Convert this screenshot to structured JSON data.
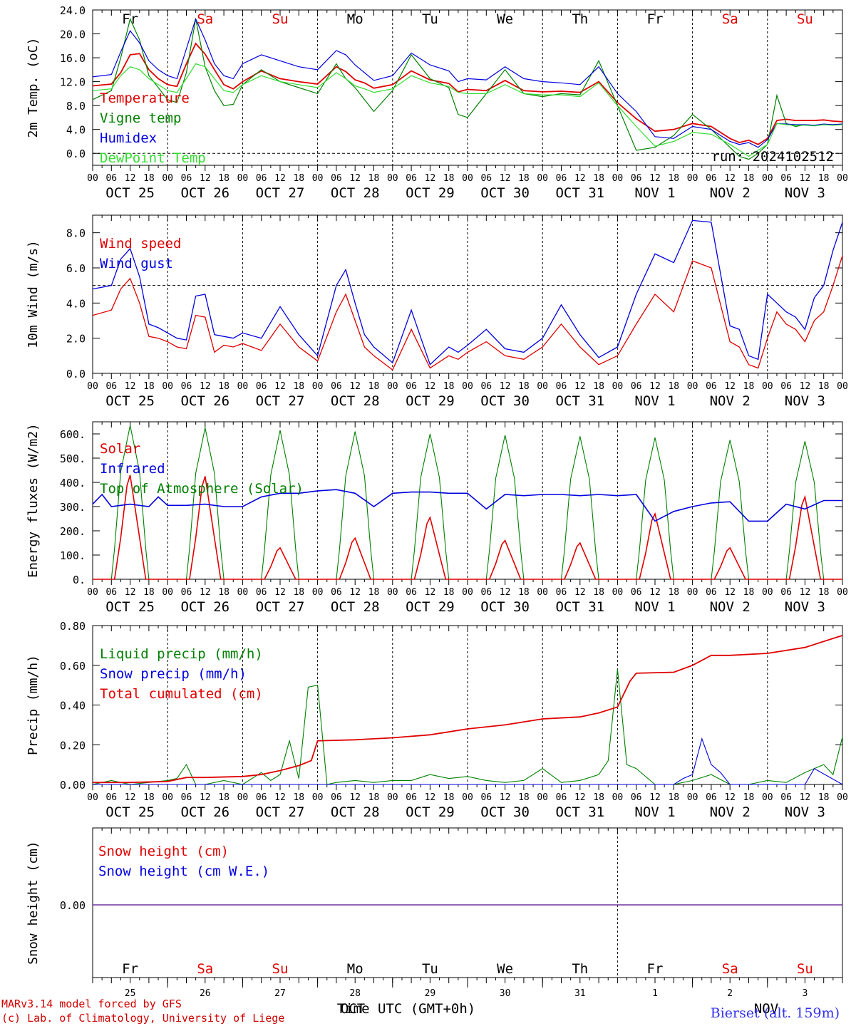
{
  "colors": {
    "red": "#e00000",
    "green": "#008000",
    "blue": "#0000e0",
    "light_green": "#33dd33",
    "purple": "#7030a0",
    "weekend": "#e00000",
    "weekday": "#000000"
  },
  "axis": {
    "hour_labels": [
      "00",
      "06",
      "12",
      "18"
    ],
    "end_hour_label": "00",
    "dates": [
      "OCT 25",
      "OCT 26",
      "OCT 27",
      "OCT 28",
      "OCT 29",
      "OCT 30",
      "OCT 31",
      "NOV  1",
      "NOV  2",
      "NOV  3"
    ],
    "days": [
      {
        "label": "Fr",
        "weekend": false
      },
      {
        "label": "Sa",
        "weekend": true
      },
      {
        "label": "Su",
        "weekend": true
      },
      {
        "label": "Mo",
        "weekend": false
      },
      {
        "label": "Tu",
        "weekend": false
      },
      {
        "label": "We",
        "weekend": false
      },
      {
        "label": "Th",
        "weekend": false
      },
      {
        "label": "Fr",
        "weekend": false
      },
      {
        "label": "Sa",
        "weekend": true
      },
      {
        "label": "Su",
        "weekend": true
      }
    ],
    "day_numbers": [
      "25",
      "26",
      "27",
      "28",
      "29",
      "30",
      "31",
      "1",
      "2",
      "3"
    ],
    "bottom_month_left": "OCT",
    "bottom_month_right": "NOV",
    "xlabel": "Time UTC (GMT+0h)"
  },
  "run_label": "run: 2024102512",
  "footer": {
    "line1": "MARv3.14 model forced by GFS",
    "line2": "(c) Lab. of Climatology, University of Liege",
    "station": "Bierset (alt. 159m)"
  },
  "chart_data": [
    {
      "type": "line",
      "ylabel": "2m Temp. (oC)",
      "ylim": [
        -2,
        24
      ],
      "yticks": [
        "0.0",
        "4.0",
        "8.0",
        "12.0",
        "16.0",
        "20.0",
        "24.0"
      ],
      "ytick_values": [
        0,
        4,
        8,
        12,
        16,
        20,
        24
      ],
      "reference_line": 0,
      "x_hours": [
        0,
        6,
        9,
        12,
        15,
        18,
        21,
        24,
        27,
        30,
        33,
        36,
        39,
        42,
        45,
        48,
        54,
        60,
        66,
        72,
        78,
        81,
        84,
        87,
        90,
        96,
        102,
        108,
        114,
        117,
        120,
        126,
        132,
        138,
        144,
        150,
        156,
        162,
        168,
        174,
        180,
        186,
        192,
        198,
        204,
        207,
        210,
        213,
        216,
        219,
        222,
        225,
        228,
        231,
        234,
        237,
        240
      ],
      "series": [
        {
          "name": "Temperature",
          "color_key": "red",
          "values": [
            11.3,
            11.6,
            13.5,
            16.5,
            16.7,
            14.0,
            12.5,
            11.5,
            11.2,
            15.0,
            18.4,
            16.6,
            14.0,
            11.5,
            10.8,
            12.0,
            13.8,
            12.5,
            12.0,
            11.6,
            14.5,
            13.7,
            12.3,
            11.8,
            10.9,
            11.5,
            13.8,
            12.3,
            11.7,
            10.3,
            10.7,
            10.5,
            12.2,
            10.5,
            10.3,
            10.4,
            10.2,
            12.0,
            8.5,
            5.8,
            3.7,
            4.0,
            5.0,
            4.5,
            2.5,
            1.8,
            2.2,
            1.5,
            2.5,
            5.5,
            5.7,
            5.5,
            5.5,
            5.5,
            5.6,
            5.4,
            5.3
          ]
        },
        {
          "name": "Vigne temp",
          "color_key": "green",
          "values": [
            9.0,
            10.5,
            16.0,
            22.5,
            19.0,
            13.0,
            11.0,
            9.0,
            8.5,
            13.5,
            22.5,
            14.5,
            10.5,
            8.0,
            8.2,
            11.5,
            14.0,
            12.0,
            11.0,
            10.0,
            15.0,
            12.5,
            11.0,
            9.0,
            7.0,
            10.5,
            16.5,
            12.5,
            11.0,
            6.5,
            6.0,
            10.0,
            14.0,
            10.0,
            9.5,
            10.0,
            9.8,
            15.5,
            8.0,
            0.5,
            1.0,
            3.0,
            6.5,
            4.0,
            1.0,
            -0.5,
            -1.0,
            0.0,
            1.5,
            9.7,
            5.0,
            4.5,
            4.8,
            4.7,
            4.8,
            4.8,
            4.9
          ]
        },
        {
          "name": "Humidex",
          "color_key": "blue",
          "values": [
            12.8,
            13.2,
            17.0,
            20.5,
            18.5,
            15.5,
            14.0,
            13.0,
            12.5,
            17.5,
            22.5,
            19.0,
            15.0,
            13.0,
            12.5,
            15.0,
            16.5,
            15.5,
            14.5,
            14.0,
            17.2,
            16.5,
            14.8,
            13.5,
            12.2,
            13.0,
            16.8,
            14.8,
            13.8,
            12.0,
            12.5,
            12.3,
            14.5,
            12.5,
            12.0,
            11.8,
            11.5,
            14.5,
            10.0,
            7.0,
            2.8,
            2.5,
            4.5,
            4.0,
            2.0,
            1.5,
            1.8,
            1.0,
            2.3,
            5.0,
            4.9,
            4.8,
            4.8,
            4.7,
            4.9,
            4.8,
            4.9
          ]
        },
        {
          "name": "DewPoint Temp",
          "color_key": "light_green",
          "values": [
            10.5,
            10.8,
            13.0,
            14.5,
            14.0,
            12.5,
            11.5,
            10.5,
            10.2,
            12.5,
            15.0,
            14.5,
            12.5,
            10.5,
            10.2,
            11.5,
            13.0,
            12.0,
            11.5,
            11.0,
            13.5,
            12.5,
            11.3,
            10.8,
            10.2,
            10.8,
            13.0,
            11.8,
            11.2,
            10.2,
            10.0,
            10.0,
            11.5,
            10.0,
            9.8,
            9.8,
            9.5,
            11.8,
            8.0,
            4.5,
            1.2,
            2.0,
            3.5,
            3.2,
            1.5,
            0.5,
            -0.5,
            0.5,
            1.5,
            5.0,
            4.8,
            4.7,
            4.7,
            4.6,
            4.8,
            4.7,
            4.8
          ]
        }
      ]
    },
    {
      "type": "line",
      "ylabel": "10m Wind (m/s)",
      "ylim": [
        0,
        9
      ],
      "yticks": [
        "0.0",
        "2.0",
        "4.0",
        "6.0",
        "8.0"
      ],
      "ytick_values": [
        0,
        2,
        4,
        6,
        8
      ],
      "reference_line": 5,
      "x_hours": [
        0,
        6,
        9,
        12,
        15,
        18,
        21,
        24,
        27,
        30,
        33,
        36,
        39,
        42,
        45,
        48,
        54,
        60,
        66,
        72,
        78,
        81,
        84,
        87,
        90,
        96,
        102,
        108,
        114,
        117,
        120,
        126,
        132,
        138,
        144,
        150,
        156,
        162,
        168,
        174,
        180,
        186,
        192,
        198,
        204,
        207,
        210,
        213,
        216,
        219,
        222,
        225,
        228,
        231,
        234,
        237,
        240
      ],
      "series": [
        {
          "name": "Wind speed",
          "color_key": "red",
          "values": [
            3.3,
            3.6,
            4.8,
            5.4,
            4.0,
            2.1,
            2.0,
            1.8,
            1.5,
            1.4,
            3.3,
            3.2,
            1.2,
            1.6,
            1.5,
            1.7,
            1.3,
            2.8,
            1.5,
            0.7,
            3.5,
            4.5,
            3.0,
            1.5,
            1.0,
            0.2,
            2.5,
            0.3,
            1.0,
            0.8,
            1.2,
            1.8,
            1.0,
            0.8,
            1.5,
            2.8,
            1.5,
            0.5,
            1.0,
            2.8,
            4.5,
            3.5,
            6.4,
            6.0,
            1.8,
            1.5,
            0.5,
            0.3,
            2.0,
            3.5,
            2.8,
            2.5,
            1.8,
            3.0,
            3.5,
            5.0,
            6.7
          ]
        },
        {
          "name": "Wind gust",
          "color_key": "blue",
          "values": [
            4.8,
            5.0,
            6.5,
            7.1,
            5.5,
            2.8,
            2.6,
            2.3,
            2.0,
            1.9,
            4.4,
            4.5,
            2.2,
            2.1,
            2.0,
            2.3,
            2.0,
            3.8,
            2.2,
            1.0,
            5.0,
            5.9,
            4.0,
            2.2,
            1.5,
            0.6,
            3.6,
            0.5,
            1.5,
            1.2,
            1.6,
            2.5,
            1.4,
            1.2,
            2.0,
            3.9,
            2.2,
            0.9,
            1.5,
            4.5,
            6.8,
            6.3,
            8.7,
            8.6,
            2.7,
            2.5,
            1.0,
            0.8,
            4.5,
            4.0,
            3.5,
            3.2,
            2.5,
            4.3,
            5.0,
            7.0,
            8.6
          ]
        }
      ]
    },
    {
      "type": "line",
      "ylabel": "Energy fluxes (W/m2)",
      "ylim": [
        0,
        650
      ],
      "yticks": [
        "0.",
        "100.",
        "200.",
        "300.",
        "400.",
        "500.",
        "600."
      ],
      "ytick_values": [
        0,
        100,
        200,
        300,
        400,
        500,
        600
      ],
      "reference_line": null,
      "days_solar_peak": [
        430,
        425,
        130,
        170,
        255,
        160,
        150,
        270,
        130,
        340
      ],
      "days_toa_peak": [
        635,
        625,
        615,
        610,
        600,
        595,
        590,
        585,
        575,
        570
      ],
      "series": [
        {
          "name": "Solar",
          "color_key": "red",
          "shape": "daily_peaks"
        },
        {
          "name": "Infrared",
          "color_key": "blue",
          "x_hours": [
            0,
            3,
            6,
            9,
            12,
            18,
            21,
            24,
            30,
            36,
            42,
            48,
            54,
            60,
            66,
            72,
            78,
            84,
            90,
            96,
            102,
            108,
            114,
            120,
            126,
            132,
            138,
            144,
            150,
            156,
            162,
            168,
            174,
            180,
            186,
            192,
            198,
            204,
            210,
            216,
            222,
            228,
            234,
            240
          ],
          "values": [
            310,
            350,
            300,
            305,
            310,
            300,
            340,
            305,
            305,
            310,
            300,
            300,
            340,
            355,
            355,
            365,
            370,
            355,
            300,
            355,
            360,
            360,
            355,
            355,
            290,
            350,
            345,
            350,
            350,
            345,
            350,
            345,
            350,
            240,
            280,
            300,
            315,
            320,
            240,
            240,
            310,
            290,
            325,
            325
          ]
        },
        {
          "name": "Top of Atmosphere (Solar)",
          "color_key": "green",
          "shape": "daily_peaks_toa"
        }
      ]
    },
    {
      "type": "line",
      "ylabel": "Precip (mm/h)",
      "ylim": [
        0,
        0.8
      ],
      "yticks": [
        "0.00",
        "0.20",
        "0.40",
        "0.60",
        "0.80"
      ],
      "ytick_values": [
        0,
        0.2,
        0.4,
        0.6,
        0.8
      ],
      "reference_line": null,
      "series": [
        {
          "name": "Liquid precip (mm/h)",
          "color_key": "green",
          "x_hours": [
            0,
            6,
            12,
            18,
            24,
            27,
            30,
            33,
            36,
            42,
            48,
            54,
            57,
            60,
            63,
            66,
            69,
            72,
            75,
            78,
            84,
            90,
            96,
            102,
            108,
            114,
            120,
            126,
            132,
            138,
            144,
            150,
            156,
            162,
            165,
            168,
            171,
            174,
            180,
            186,
            192,
            198,
            204,
            210,
            216,
            222,
            228,
            234,
            237,
            240
          ],
          "values": [
            0.0,
            0.02,
            0.0,
            0.01,
            0.02,
            0.03,
            0.1,
            0.0,
            0.0,
            0.02,
            0.0,
            0.06,
            0.02,
            0.05,
            0.22,
            0.03,
            0.49,
            0.5,
            0.0,
            0.01,
            0.02,
            0.01,
            0.02,
            0.02,
            0.05,
            0.03,
            0.04,
            0.02,
            0.01,
            0.02,
            0.08,
            0.01,
            0.02,
            0.05,
            0.12,
            0.58,
            0.1,
            0.08,
            0.0,
            0.0,
            0.02,
            0.05,
            0.0,
            0.0,
            0.02,
            0.01,
            0.06,
            0.1,
            0.05,
            0.24
          ]
        },
        {
          "name": "Snow precip (mm/h)",
          "color_key": "blue",
          "x_hours": [
            0,
            186,
            189,
            192,
            195,
            198,
            201,
            204,
            228,
            231,
            240
          ],
          "values": [
            0.0,
            0.0,
            0.03,
            0.05,
            0.23,
            0.1,
            0.06,
            0.0,
            0.0,
            0.08,
            0.0
          ]
        },
        {
          "name": "Total cumulated (cm)",
          "color_key": "red",
          "x_hours": [
            0,
            12,
            24,
            30,
            36,
            48,
            54,
            60,
            66,
            70,
            72,
            84,
            96,
            108,
            120,
            132,
            144,
            156,
            162,
            168,
            172,
            174,
            186,
            192,
            198,
            204,
            216,
            228,
            240
          ],
          "values": [
            0.01,
            0.01,
            0.015,
            0.035,
            0.035,
            0.04,
            0.05,
            0.07,
            0.095,
            0.12,
            0.22,
            0.225,
            0.235,
            0.25,
            0.28,
            0.3,
            0.33,
            0.34,
            0.36,
            0.39,
            0.52,
            0.56,
            0.565,
            0.6,
            0.65,
            0.65,
            0.66,
            0.69,
            0.75
          ]
        }
      ]
    },
    {
      "type": "line",
      "ylabel": "Snow height (cm)",
      "yticks": [
        "0.00"
      ],
      "series": [
        {
          "name": "Snow height (cm)",
          "color_key": "red"
        },
        {
          "name": "Snow height (cm W.E.)",
          "color_key": "blue"
        }
      ],
      "values": [
        0,
        0
      ]
    }
  ]
}
